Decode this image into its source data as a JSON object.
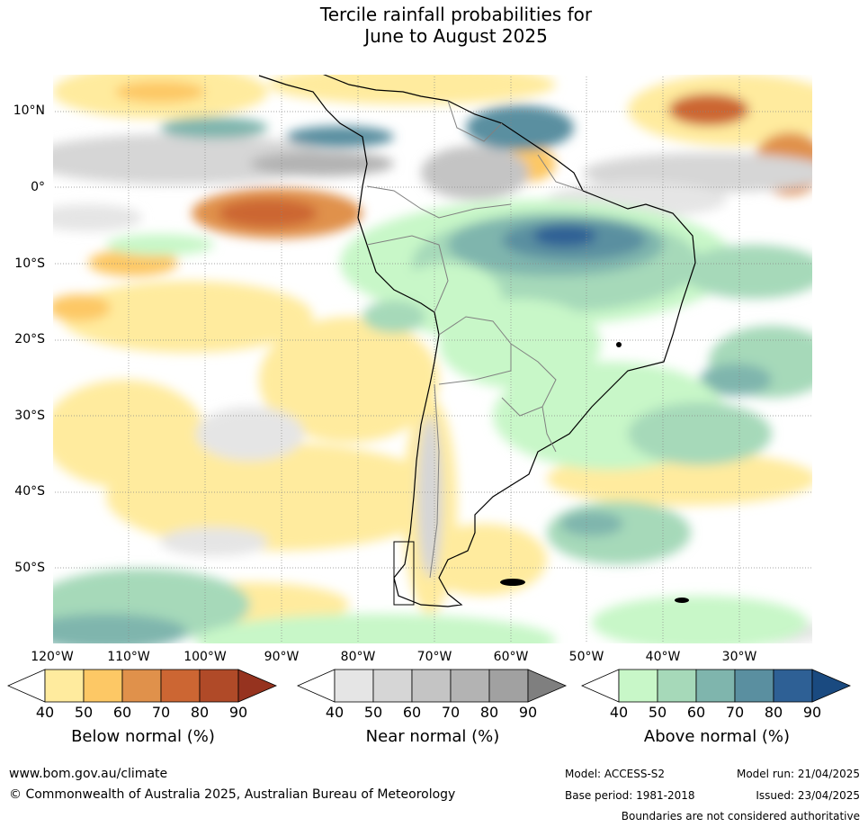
{
  "title": {
    "line1": "Tercile rainfall probabilities for",
    "line2": "June to August 2025"
  },
  "map": {
    "region": "South America",
    "lat_ticks": [
      "10°N",
      "0°",
      "10°S",
      "20°S",
      "30°S",
      "40°S",
      "50°S"
    ],
    "lon_ticks": [
      "120°W",
      "110°W",
      "100°W",
      "90°W",
      "80°W",
      "70°W",
      "60°W",
      "50°W",
      "40°W",
      "30°W"
    ]
  },
  "legends": [
    {
      "label": "Below normal (%)",
      "ticks": [
        "40",
        "50",
        "60",
        "70",
        "80",
        "90"
      ],
      "colors": [
        "#ffffff",
        "#ffeb9e",
        "#fdc865",
        "#e0914b",
        "#cc6633",
        "#b04a28",
        "#96331f"
      ]
    },
    {
      "label": "Near normal (%)",
      "ticks": [
        "40",
        "50",
        "60",
        "70",
        "80",
        "90"
      ],
      "colors": [
        "#ffffff",
        "#e5e5e5",
        "#d6d6d6",
        "#c4c4c4",
        "#b3b3b3",
        "#a1a1a1",
        "#7f7f7f"
      ]
    },
    {
      "label": "Above normal (%)",
      "ticks": [
        "40",
        "50",
        "60",
        "70",
        "80",
        "90"
      ],
      "colors": [
        "#ffffff",
        "#c8f7c8",
        "#a6d9b9",
        "#7fb5ad",
        "#5a8fa0",
        "#2e6095",
        "#1a4a80"
      ]
    }
  ],
  "footer": {
    "website": "www.bom.gov.au/climate",
    "copyright": "© Commonwealth of Australia 2025, Australian Bureau of Meteorology",
    "model": "Model: ACCESS-S2",
    "base_period": "Base period: 1981-2018",
    "model_run": "Model run: 21/04/2025",
    "issued": "Issued: 23/04/2025",
    "disclaimer": "Boundaries are not considered authoritative"
  }
}
